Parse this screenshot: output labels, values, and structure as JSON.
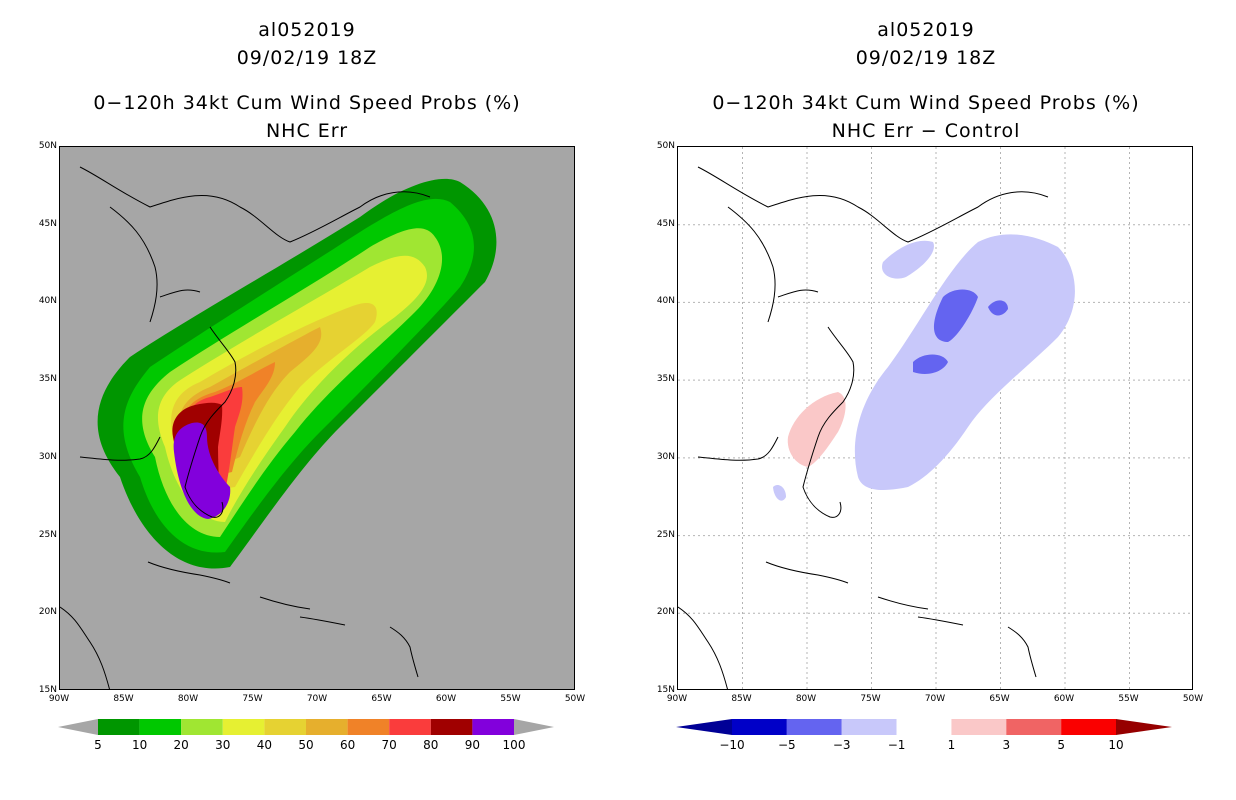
{
  "left_panel": {
    "storm_id": "al052019",
    "datetime": "09/02/19 18Z",
    "product": "0−120h 34kt Cum Wind Speed Probs (%)",
    "subtitle": "NHC Err",
    "background_color": "#a6a6a6",
    "colorbar": {
      "labels": [
        "5",
        "10",
        "20",
        "30",
        "40",
        "50",
        "60",
        "70",
        "80",
        "90",
        "100"
      ],
      "colors": [
        "#009600",
        "#00c800",
        "#a0e632",
        "#e6f032",
        "#e6d232",
        "#e6af2d",
        "#f08228",
        "#fa3c3c",
        "#a00000",
        "#8200dc"
      ]
    }
  },
  "right_panel": {
    "storm_id": "al052019",
    "datetime": "09/02/19 18Z",
    "product": "0−120h 34kt Cum Wind Speed Probs (%)",
    "subtitle": "NHC Err − Control",
    "background_color": "#ffffff",
    "colorbar": {
      "labels": [
        "−10",
        "−5",
        "−3",
        "−1",
        "1",
        "3",
        "5",
        "10"
      ],
      "colors": [
        "#0000c8",
        "#6464f0",
        "#c8c8fa",
        "#ffffff",
        "#fac8c8",
        "#f06464",
        "#fa0000"
      ],
      "end_colors": [
        "#000096",
        "#960000"
      ]
    }
  },
  "axes": {
    "lat_labels": [
      "50N",
      "45N",
      "40N",
      "35N",
      "30N",
      "25N",
      "20N",
      "15N"
    ],
    "lon_labels": [
      "90W",
      "85W",
      "80W",
      "75W",
      "70W",
      "65W",
      "60W",
      "55W",
      "50W"
    ]
  }
}
